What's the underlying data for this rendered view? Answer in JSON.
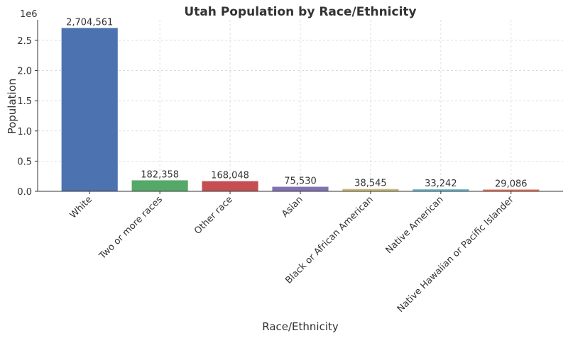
{
  "chart_data": {
    "type": "bar",
    "title": "Utah Population by Race/Ethnicity",
    "x_label": "Race/Ethnicity",
    "y_label": "Population",
    "y_offset_label": "1e6",
    "categories": [
      "White",
      "Two or more races",
      "Other race",
      "Asian",
      "Black or African American",
      "Native American",
      "Native Hawaiian or Pacific Islander"
    ],
    "values": [
      2704561,
      182358,
      168048,
      75530,
      38545,
      33242,
      29086
    ],
    "value_labels": [
      "2,704,561",
      "182,358",
      "168,048",
      "75,530",
      "38,545",
      "33,242",
      "29,086"
    ],
    "colors": [
      "#4c72b0",
      "#55a868",
      "#c44e52",
      "#8172b2",
      "#ccb974",
      "#64b5cd",
      "#ee6a50"
    ],
    "ylim": [
      0,
      2839789
    ],
    "yticks": [
      {
        "value": 0,
        "label": "0.0"
      },
      {
        "value": 500000,
        "label": "0.5"
      },
      {
        "value": 1000000,
        "label": "1.0"
      },
      {
        "value": 1500000,
        "label": "1.5"
      },
      {
        "value": 2000000,
        "label": "2.0"
      },
      {
        "value": 2500000,
        "label": "2.5"
      }
    ],
    "grid": true
  }
}
